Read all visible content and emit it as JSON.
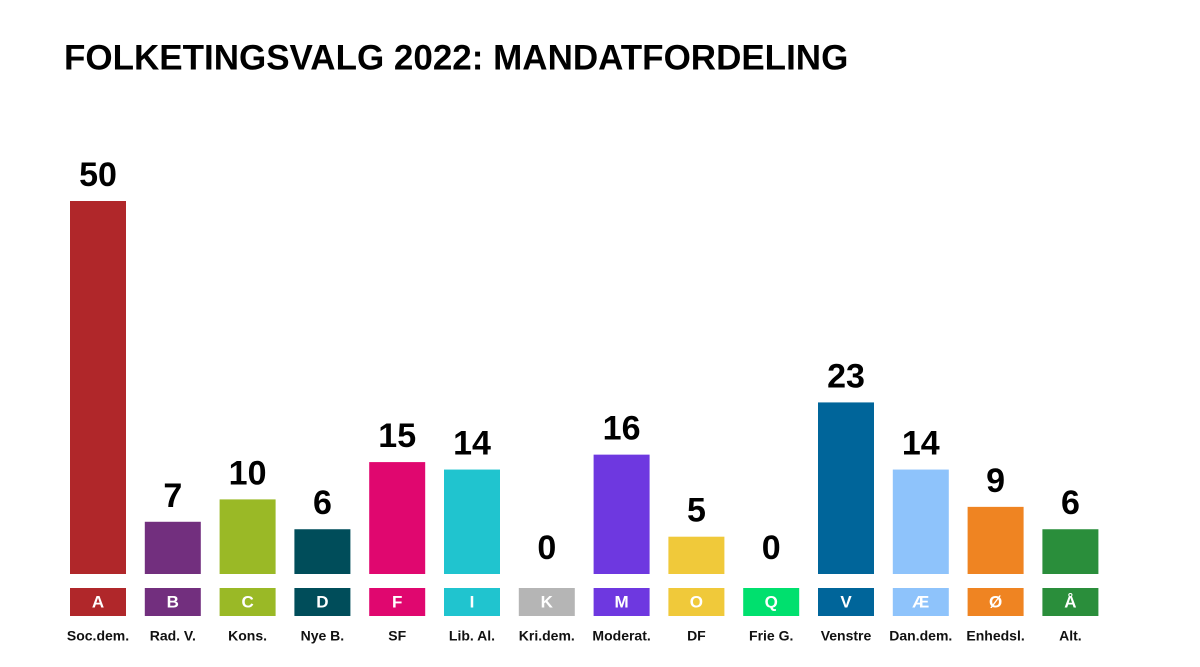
{
  "chart_data": {
    "type": "bar",
    "title": "FOLKETINGSVALG 2022: MANDATFORDELING",
    "categories": [
      "Soc.dem.",
      "Rad. V.",
      "Kons.",
      "Nye B.",
      "SF",
      "Lib. Al.",
      "Kri.dem.",
      "Moderat.",
      "DF",
      "Frie G.",
      "Venstre",
      "Dan.dem.",
      "Enhedsl.",
      "Alt."
    ],
    "letters": [
      "A",
      "B",
      "C",
      "D",
      "F",
      "I",
      "K",
      "M",
      "O",
      "Q",
      "V",
      "Æ",
      "Ø",
      "Å"
    ],
    "values": [
      50,
      7,
      10,
      6,
      15,
      14,
      0,
      16,
      5,
      0,
      23,
      14,
      9,
      6
    ],
    "colors": [
      "#b0272a",
      "#722f7e",
      "#9ab926",
      "#004d5a",
      "#e0076f",
      "#20c4cf",
      "#b5b5b5",
      "#6e38e0",
      "#f0c93a",
      "#00e06e",
      "#00659a",
      "#8ec3fb",
      "#ef8422",
      "#2a8e3b"
    ]
  }
}
